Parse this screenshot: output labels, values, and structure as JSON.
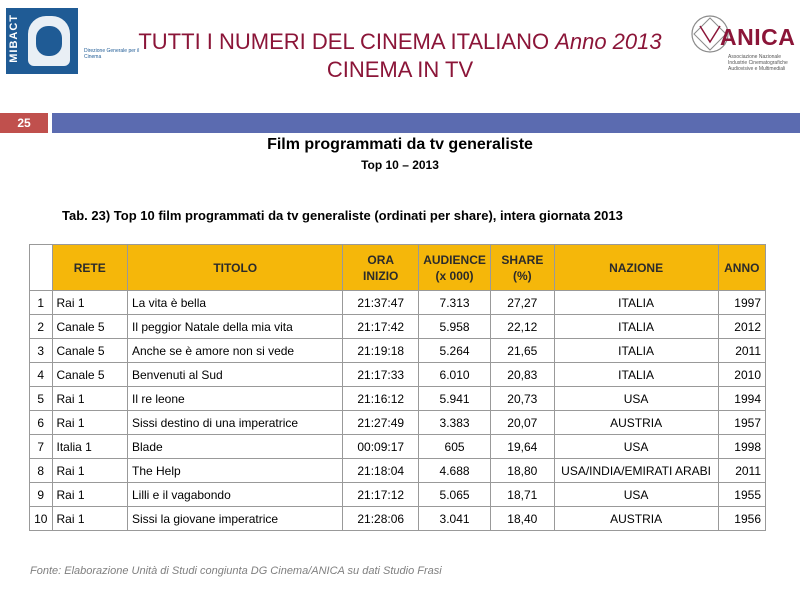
{
  "header": {
    "title_line1_main": "TUTTI I NUMERI DEL CINEMA ITALIANO ",
    "title_line1_year": "Anno 2013",
    "title_line2": "CINEMA IN TV",
    "logo_left_text": "MIBACT",
    "logo_left_sub": "Direzione Generale per il Cinema",
    "logo_right_text": "ANICA",
    "logo_right_sub": "Associazione Nazionale Industrie Cinematografiche Audiovisive e Multimediali"
  },
  "page_number": "25",
  "section": {
    "heading": "Film programmati da tv generaliste",
    "subheading": "Top 10 – 2013",
    "caption": "Tab. 23) Top 10 film programmati da tv  generaliste (ordinati per share), intera giornata 2013"
  },
  "table": {
    "headers": {
      "rete": "RETE",
      "titolo": "TITOLO",
      "ora_1": "ORA",
      "ora_2": "INIZIO",
      "audience_1": "AUDIENCE",
      "audience_2": "(x 000)",
      "share": "SHARE (%)",
      "nazione": "NAZIONE",
      "anno": "ANNO"
    },
    "rows": [
      {
        "n": "1",
        "rete": "Rai 1",
        "titolo": "La vita è bella",
        "ora": "21:37:47",
        "audience": "7.313",
        "share": "27,27",
        "nazione": "ITALIA",
        "anno": "1997"
      },
      {
        "n": "2",
        "rete": "Canale 5",
        "titolo": "Il peggior Natale della mia vita",
        "ora": "21:17:42",
        "audience": "5.958",
        "share": "22,12",
        "nazione": "ITALIA",
        "anno": "2012"
      },
      {
        "n": "3",
        "rete": "Canale 5",
        "titolo": "Anche se è amore non si vede",
        "ora": "21:19:18",
        "audience": "5.264",
        "share": "21,65",
        "nazione": "ITALIA",
        "anno": "2011"
      },
      {
        "n": "4",
        "rete": "Canale 5",
        "titolo": "Benvenuti al Sud",
        "ora": "21:17:33",
        "audience": "6.010",
        "share": "20,83",
        "nazione": "ITALIA",
        "anno": "2010"
      },
      {
        "n": "5",
        "rete": "Rai 1",
        "titolo": "Il re leone",
        "ora": "21:16:12",
        "audience": "5.941",
        "share": "20,73",
        "nazione": "USA",
        "anno": "1994"
      },
      {
        "n": "6",
        "rete": "Rai 1",
        "titolo": "Sissi destino di una imperatrice",
        "ora": "21:27:49",
        "audience": "3.383",
        "share": "20,07",
        "nazione": "AUSTRIA",
        "anno": "1957"
      },
      {
        "n": "7",
        "rete": "Italia 1",
        "titolo": "Blade",
        "ora": "00:09:17",
        "audience": "605",
        "share": "19,64",
        "nazione": "USA",
        "anno": "1998"
      },
      {
        "n": "8",
        "rete": "Rai 1",
        "titolo": "The Help",
        "ora": "21:18:04",
        "audience": "4.688",
        "share": "18,80",
        "nazione": "USA/INDIA/EMIRATI ARABI",
        "anno": "2011"
      },
      {
        "n": "9",
        "rete": "Rai 1",
        "titolo": "Lilli e il vagabondo",
        "ora": "21:17:12",
        "audience": "5.065",
        "share": "18,71",
        "nazione": "USA",
        "anno": "1955"
      },
      {
        "n": "10",
        "rete": "Rai 1",
        "titolo": "Sissi la giovane imperatrice",
        "ora": "21:28:06",
        "audience": "3.041",
        "share": "18,40",
        "nazione": "AUSTRIA",
        "anno": "1956"
      }
    ]
  },
  "footer": {
    "source": "Fonte: Elaborazione Unità di Studi congiunta DG Cinema/ANICA su dati Studio Frasi"
  },
  "colors": {
    "title": "#8b1538",
    "header_fill": "#f5b70a",
    "page_number_bg": "#c0504d",
    "page_bar": "#5b6bb0",
    "logo_blue": "#1f5b95"
  }
}
